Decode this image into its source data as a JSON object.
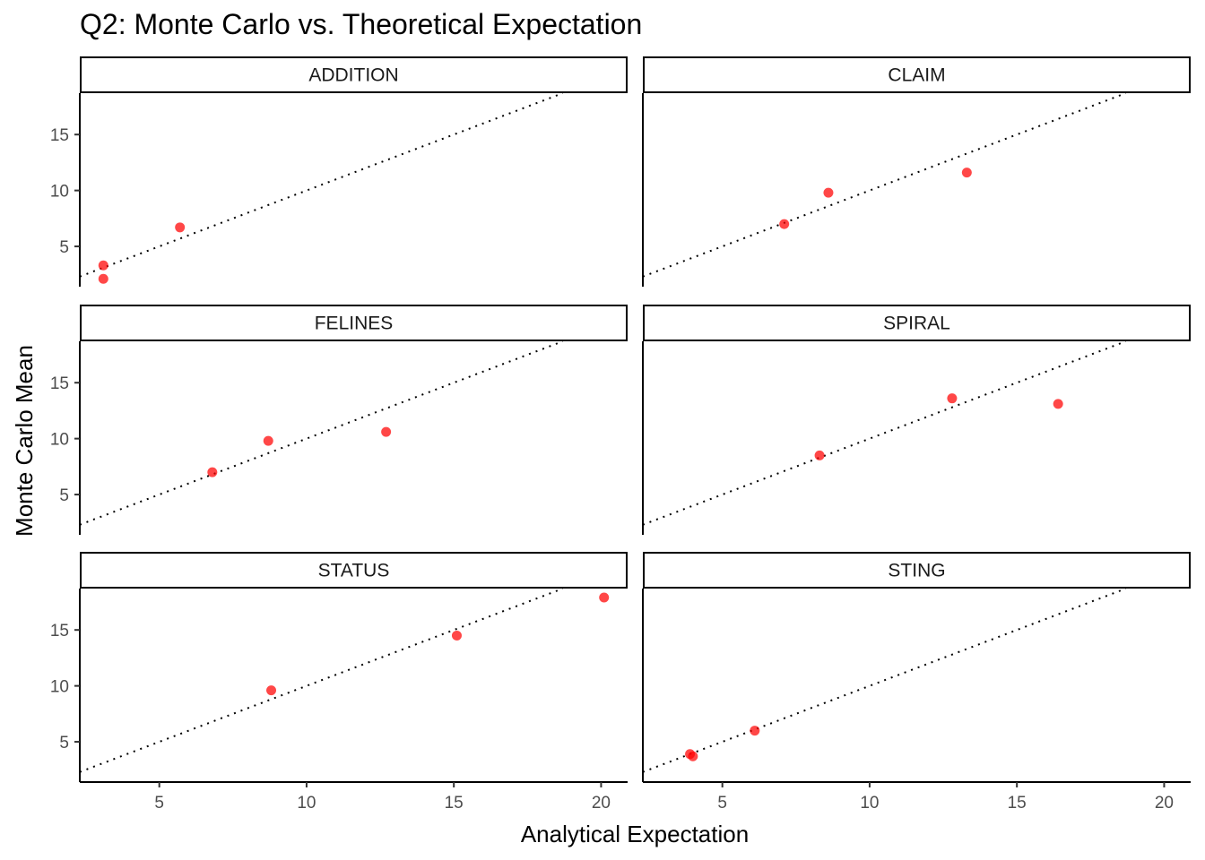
{
  "chart_data": {
    "type": "scatter",
    "title": "Q2: Monte Carlo vs. Theoretical Expectation",
    "xlabel": "Analytical Expectation",
    "ylabel": "Monte Carlo Mean",
    "xlim": [
      2.3,
      20.9
    ],
    "ylim": [
      1.4,
      18.7
    ],
    "x_ticks": [
      5,
      10,
      15,
      20
    ],
    "y_ticks": [
      5,
      10,
      15
    ],
    "reference_line": "y = x",
    "grid": false,
    "point_color": "#ff0000",
    "facets": [
      {
        "label": "ADDITION",
        "points": [
          {
            "x": 3.1,
            "y": 3.3
          },
          {
            "x": 3.1,
            "y": 2.1
          },
          {
            "x": 5.7,
            "y": 6.7
          }
        ]
      },
      {
        "label": "CLAIM",
        "points": [
          {
            "x": 7.1,
            "y": 7.0
          },
          {
            "x": 8.6,
            "y": 9.8
          },
          {
            "x": 13.3,
            "y": 11.6
          }
        ]
      },
      {
        "label": "FELINES",
        "points": [
          {
            "x": 6.8,
            "y": 7.0
          },
          {
            "x": 8.7,
            "y": 9.8
          },
          {
            "x": 12.7,
            "y": 10.6
          }
        ]
      },
      {
        "label": "SPIRAL",
        "points": [
          {
            "x": 8.3,
            "y": 8.5
          },
          {
            "x": 12.8,
            "y": 13.6
          },
          {
            "x": 16.4,
            "y": 13.1
          }
        ]
      },
      {
        "label": "STATUS",
        "points": [
          {
            "x": 8.8,
            "y": 9.6
          },
          {
            "x": 15.1,
            "y": 14.5
          },
          {
            "x": 20.1,
            "y": 17.9
          }
        ]
      },
      {
        "label": "STING",
        "points": [
          {
            "x": 3.9,
            "y": 3.9
          },
          {
            "x": 4.0,
            "y": 3.7
          },
          {
            "x": 6.1,
            "y": 6.0
          }
        ]
      }
    ]
  }
}
